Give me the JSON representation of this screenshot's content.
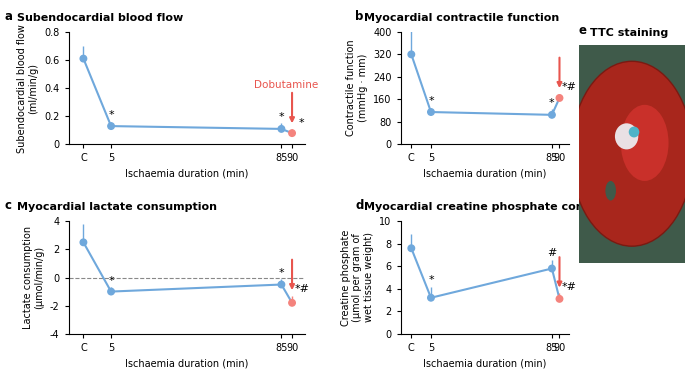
{
  "chart_data": [
    {
      "type": "line",
      "label": "a",
      "title": "Subendocardial blood flow",
      "x_label": "Ischaemia duration (min)",
      "y_label": "Subendocardial blood flow\n(ml/min/g)",
      "x": [
        -8,
        5,
        85,
        90
      ],
      "values": [
        0.61,
        0.13,
        0.11,
        0.08
      ],
      "errors": [
        0.09,
        0.03,
        0.04,
        0.03
      ],
      "marks": [
        null,
        "*",
        "*",
        "*"
      ],
      "color": "#6fa8dc",
      "colors": [
        "#6fa8dc",
        "#6fa8dc",
        "#6fa8dc",
        "#f4837d"
      ],
      "marker": "o",
      "intervention": {
        "x": 90,
        "label": "Dobutamine",
        "color": "#e8554e"
      },
      "xlim": [
        -15,
        96
      ],
      "xticks": [
        {
          "value": -8,
          "label": "C"
        },
        5,
        85,
        90
      ],
      "ylim": [
        0,
        0.8
      ],
      "yticks": [
        0,
        0.2,
        0.4,
        0.6,
        0.8
      ]
    },
    {
      "type": "line",
      "label": "b",
      "title": "Myocardial contractile function",
      "x_label": "Ischaemia duration (min)",
      "y_label": "Contractile function\n(mmHg · mm)",
      "x": [
        -8,
        5,
        85,
        90
      ],
      "values": [
        320,
        115,
        105,
        165
      ],
      "errors": [
        85,
        15,
        20,
        15
      ],
      "marks": [
        null,
        "*",
        "*",
        "*#"
      ],
      "color": "#6fa8dc",
      "colors": [
        "#6fa8dc",
        "#6fa8dc",
        "#6fa8dc",
        "#f4837d"
      ],
      "marker": "o",
      "intervention": {
        "x": 90,
        "color": "#e8554e"
      },
      "xlim": [
        -15,
        96
      ],
      "xticks": [
        {
          "value": -8,
          "label": "C"
        },
        5,
        85,
        90
      ],
      "ylim": [
        0,
        400
      ],
      "yticks": [
        0,
        80,
        160,
        240,
        320,
        400
      ]
    },
    {
      "type": "line",
      "label": "c",
      "title": "Myocardial lactate consumption",
      "x_label": "Ischaemia duration (min)",
      "y_label": "Lactate consumption\n(μmol/min/g)",
      "x": [
        -8,
        5,
        85,
        90
      ],
      "values": [
        2.5,
        -1.0,
        -0.5,
        -1.8
      ],
      "errors": [
        1.3,
        0.3,
        0.4,
        0.5
      ],
      "marks": [
        null,
        "*",
        "*",
        "*#"
      ],
      "color": "#6fa8dc",
      "colors": [
        "#6fa8dc",
        "#6fa8dc",
        "#6fa8dc",
        "#f4837d"
      ],
      "marker": "o",
      "intervention": {
        "x": 90,
        "color": "#e8554e"
      },
      "reference_y": 0,
      "line_style": "dashed",
      "xlim": [
        -15,
        96
      ],
      "xticks": [
        {
          "value": -8,
          "label": "C"
        },
        5,
        85,
        90
      ],
      "ylim": [
        -4,
        4
      ],
      "yticks": [
        -4,
        -2,
        0,
        2,
        4
      ]
    },
    {
      "type": "line",
      "label": "d",
      "title": "Myocardial creatine phosphate content",
      "x_label": "Ischaemia duration (min)",
      "y_label": "Creatine phosphate\n(μmol per gram of\nwet tissue weight)",
      "x": [
        -8,
        5,
        85,
        90
      ],
      "values": [
        7.6,
        3.2,
        5.8,
        3.1
      ],
      "errors": [
        1.3,
        1.0,
        0.8,
        0.5
      ],
      "marks": [
        null,
        "*",
        "#",
        "*#"
      ],
      "color": "#6fa8dc",
      "colors": [
        "#6fa8dc",
        "#6fa8dc",
        "#6fa8dc",
        "#f4837d"
      ],
      "marker": "o",
      "intervention": {
        "x": 90,
        "color": "#e8554e"
      },
      "xlim": [
        -15,
        96
      ],
      "xticks": [
        {
          "value": -8,
          "label": "C"
        },
        5,
        85,
        90
      ],
      "ylim": [
        0,
        10
      ],
      "yticks": [
        0,
        2,
        4,
        6,
        8,
        10
      ]
    }
  ],
  "image_panel": {
    "label": "e",
    "title": "TTC staining"
  }
}
